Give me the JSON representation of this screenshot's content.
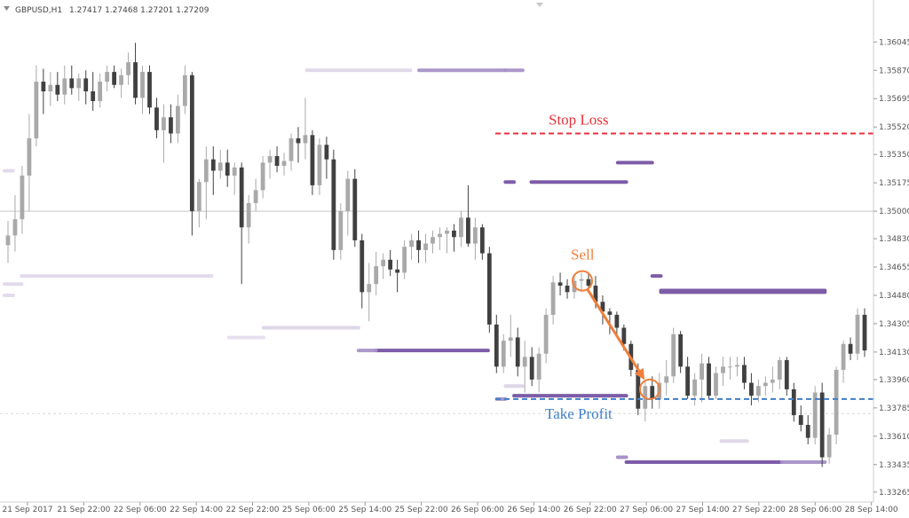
{
  "header": {
    "symbol": "GBPUSD,H1",
    "ohlc": "1.27417 1.27468 1.27201 1.27209"
  },
  "chart_data": {
    "type": "candlestick",
    "title": "",
    "xlabel": "",
    "ylabel": "",
    "ylim": [
      1.3322,
      1.3614
    ],
    "y_ticks": [
      "1.36045",
      "1.35870",
      "1.35695",
      "1.35520",
      "1.35350",
      "1.35175",
      "1.35000",
      "1.34830",
      "1.34655",
      "1.34480",
      "1.34305",
      "1.34130",
      "1.33960",
      "1.33785",
      "1.33610",
      "1.33435",
      "1.33265"
    ],
    "x_ticks": [
      "21 Sep 2017",
      "21 Sep 22:00",
      "22 Sep 06:00",
      "22 Sep 14:00",
      "22 Sep 22:00",
      "25 Sep 06:00",
      "25 Sep 14:00",
      "25 Sep 22:00",
      "26 Sep 06:00",
      "26 Sep 14:00",
      "26 Sep 22:00",
      "27 Sep 06:00",
      "27 Sep 14:00",
      "27 Sep 22:00",
      "28 Sep 06:00",
      "28 Sep 14:00"
    ],
    "grid": false,
    "reference_line": 1.35,
    "candles_ohlc": [
      [
        1.3479,
        1.3494,
        1.3468,
        1.3485
      ],
      [
        1.3485,
        1.351,
        1.3475,
        1.3495
      ],
      [
        1.3495,
        1.3528,
        1.3486,
        1.3522
      ],
      [
        1.3522,
        1.356,
        1.35,
        1.3545
      ],
      [
        1.3545,
        1.359,
        1.354,
        1.358
      ],
      [
        1.358,
        1.3588,
        1.356,
        1.3574
      ],
      [
        1.3574,
        1.3586,
        1.3565,
        1.3578
      ],
      [
        1.3578,
        1.3586,
        1.3568,
        1.3572
      ],
      [
        1.3572,
        1.359,
        1.3566,
        1.3582
      ],
      [
        1.3582,
        1.359,
        1.3572,
        1.3576
      ],
      [
        1.3576,
        1.3585,
        1.3568,
        1.3582
      ],
      [
        1.3582,
        1.3587,
        1.3566,
        1.3574
      ],
      [
        1.3574,
        1.3586,
        1.3562,
        1.3568
      ],
      [
        1.3568,
        1.3585,
        1.3564,
        1.358
      ],
      [
        1.358,
        1.359,
        1.3574,
        1.3586
      ],
      [
        1.3586,
        1.359,
        1.3576,
        1.3578
      ],
      [
        1.3578,
        1.3588,
        1.357,
        1.3584
      ],
      [
        1.3584,
        1.3598,
        1.3578,
        1.3592
      ],
      [
        1.3592,
        1.3604,
        1.3566,
        1.357
      ],
      [
        1.357,
        1.359,
        1.356,
        1.3586
      ],
      [
        1.3586,
        1.359,
        1.356,
        1.3564
      ],
      [
        1.3564,
        1.357,
        1.3545,
        1.355
      ],
      [
        1.355,
        1.3566,
        1.353,
        1.3558
      ],
      [
        1.3558,
        1.3566,
        1.3542,
        1.3548
      ],
      [
        1.3548,
        1.3572,
        1.3542,
        1.3565
      ],
      [
        1.3565,
        1.359,
        1.356,
        1.3584
      ],
      [
        1.3584,
        1.3586,
        1.3485,
        1.35
      ],
      [
        1.35,
        1.352,
        1.349,
        1.3518
      ],
      [
        1.3518,
        1.354,
        1.3495,
        1.3532
      ],
      [
        1.3532,
        1.354,
        1.351,
        1.3525
      ],
      [
        1.3525,
        1.3538,
        1.352,
        1.353
      ],
      [
        1.353,
        1.3538,
        1.3515,
        1.3522
      ],
      [
        1.3522,
        1.353,
        1.351,
        1.3527
      ],
      [
        1.3527,
        1.353,
        1.3455,
        1.349
      ],
      [
        1.349,
        1.351,
        1.348,
        1.3505
      ],
      [
        1.3505,
        1.352,
        1.35,
        1.3513
      ],
      [
        1.3513,
        1.3534,
        1.3508,
        1.353
      ],
      [
        1.353,
        1.3538,
        1.352,
        1.3534
      ],
      [
        1.3534,
        1.354,
        1.3524,
        1.3528
      ],
      [
        1.3528,
        1.3536,
        1.3522,
        1.3531
      ],
      [
        1.3531,
        1.3548,
        1.3525,
        1.3545
      ],
      [
        1.3545,
        1.3552,
        1.353,
        1.3542
      ],
      [
        1.3542,
        1.357,
        1.3532,
        1.3547
      ],
      [
        1.3547,
        1.355,
        1.351,
        1.3516
      ],
      [
        1.3516,
        1.3545,
        1.351,
        1.3541
      ],
      [
        1.3541,
        1.3546,
        1.352,
        1.3532
      ],
      [
        1.3532,
        1.3538,
        1.347,
        1.3476
      ],
      [
        1.3476,
        1.3505,
        1.347,
        1.35
      ],
      [
        1.35,
        1.3525,
        1.3485,
        1.352
      ],
      [
        1.352,
        1.3526,
        1.3478,
        1.3482
      ],
      [
        1.3482,
        1.3486,
        1.344,
        1.345
      ],
      [
        1.345,
        1.3468,
        1.3432,
        1.3455
      ],
      [
        1.3455,
        1.3475,
        1.3448,
        1.3466
      ],
      [
        1.3466,
        1.3474,
        1.3458,
        1.347
      ],
      [
        1.347,
        1.3476,
        1.346,
        1.3464
      ],
      [
        1.3464,
        1.347,
        1.345,
        1.3462
      ],
      [
        1.3462,
        1.3482,
        1.3458,
        1.3478
      ],
      [
        1.3478,
        1.3486,
        1.347,
        1.3482
      ],
      [
        1.3482,
        1.3488,
        1.3468,
        1.3476
      ],
      [
        1.3476,
        1.3486,
        1.3468,
        1.348
      ],
      [
        1.348,
        1.3488,
        1.3474,
        1.3484
      ],
      [
        1.3484,
        1.349,
        1.3476,
        1.3486
      ],
      [
        1.3486,
        1.349,
        1.3474,
        1.3488
      ],
      [
        1.3488,
        1.3492,
        1.3475,
        1.3484
      ],
      [
        1.3484,
        1.35,
        1.3478,
        1.3496
      ],
      [
        1.3496,
        1.3516,
        1.3478,
        1.348
      ],
      [
        1.348,
        1.3496,
        1.347,
        1.349
      ],
      [
        1.349,
        1.3492,
        1.347,
        1.3474
      ],
      [
        1.3474,
        1.3478,
        1.3425,
        1.343
      ],
      [
        1.343,
        1.3436,
        1.34,
        1.3404
      ],
      [
        1.3404,
        1.3424,
        1.34,
        1.342
      ],
      [
        1.342,
        1.3436,
        1.341,
        1.3422
      ],
      [
        1.3422,
        1.3428,
        1.3398,
        1.3404
      ],
      [
        1.3404,
        1.342,
        1.3388,
        1.341
      ],
      [
        1.341,
        1.3416,
        1.3392,
        1.3396
      ],
      [
        1.3396,
        1.3416,
        1.3388,
        1.3412
      ],
      [
        1.3412,
        1.344,
        1.3406,
        1.3436
      ],
      [
        1.3436,
        1.346,
        1.343,
        1.3456
      ],
      [
        1.3456,
        1.3462,
        1.3448,
        1.3454
      ],
      [
        1.3454,
        1.3458,
        1.3446,
        1.345
      ],
      [
        1.345,
        1.346,
        1.3446,
        1.3457
      ],
      [
        1.3457,
        1.3462,
        1.345,
        1.3458
      ],
      [
        1.3458,
        1.3462,
        1.3452,
        1.3454
      ],
      [
        1.3454,
        1.346,
        1.344,
        1.3444
      ],
      [
        1.3444,
        1.3448,
        1.343,
        1.3438
      ],
      [
        1.3438,
        1.344,
        1.3424,
        1.3436
      ],
      [
        1.3436,
        1.3438,
        1.3422,
        1.3428
      ],
      [
        1.3428,
        1.343,
        1.3414,
        1.3418
      ],
      [
        1.3418,
        1.342,
        1.3398,
        1.3402
      ],
      [
        1.3402,
        1.3406,
        1.3374,
        1.3378
      ],
      [
        1.3378,
        1.3396,
        1.337,
        1.3392
      ],
      [
        1.3392,
        1.3398,
        1.3378,
        1.3384
      ],
      [
        1.3384,
        1.34,
        1.3378,
        1.3394
      ],
      [
        1.3394,
        1.3408,
        1.3386,
        1.3398
      ],
      [
        1.3398,
        1.3428,
        1.3394,
        1.3424
      ],
      [
        1.3424,
        1.3426,
        1.34,
        1.3404
      ],
      [
        1.3404,
        1.341,
        1.3384,
        1.3386
      ],
      [
        1.3386,
        1.34,
        1.338,
        1.3396
      ],
      [
        1.3396,
        1.3412,
        1.3382,
        1.3406
      ],
      [
        1.3406,
        1.341,
        1.3384,
        1.3386
      ],
      [
        1.3386,
        1.3404,
        1.3384,
        1.34
      ],
      [
        1.34,
        1.341,
        1.3392,
        1.3404
      ],
      [
        1.3404,
        1.341,
        1.3396,
        1.3404
      ],
      [
        1.3404,
        1.341,
        1.3398,
        1.3405
      ],
      [
        1.3405,
        1.341,
        1.339,
        1.3394
      ],
      [
        1.3394,
        1.34,
        1.338,
        1.3386
      ],
      [
        1.3386,
        1.3396,
        1.3382,
        1.3392
      ],
      [
        1.3392,
        1.3398,
        1.3386,
        1.3394
      ],
      [
        1.3394,
        1.3404,
        1.3388,
        1.3396
      ],
      [
        1.3396,
        1.341,
        1.339,
        1.3408
      ],
      [
        1.3408,
        1.341,
        1.3386,
        1.339
      ],
      [
        1.339,
        1.3394,
        1.337,
        1.3374
      ],
      [
        1.3374,
        1.338,
        1.3364,
        1.3368
      ],
      [
        1.3368,
        1.3374,
        1.3356,
        1.336
      ],
      [
        1.336,
        1.3392,
        1.3356,
        1.3388
      ],
      [
        1.3388,
        1.3394,
        1.3342,
        1.3348
      ],
      [
        1.3348,
        1.3366,
        1.3344,
        1.3362
      ],
      [
        1.3362,
        1.3404,
        1.3356,
        1.3402
      ],
      [
        1.3402,
        1.342,
        1.3394,
        1.3418
      ],
      [
        1.3418,
        1.3422,
        1.3408,
        1.3412
      ],
      [
        1.3412,
        1.344,
        1.3408,
        1.3436
      ],
      [
        1.3436,
        1.344,
        1.341,
        1.3414
      ]
    ],
    "volume_profile": [
      {
        "price": 1.3587,
        "from": 0.35,
        "to": 0.47,
        "strength": 0.3
      },
      {
        "price": 1.3587,
        "from": 0.48,
        "to": 0.58,
        "strength": 0.45
      },
      {
        "price": 1.3587,
        "from": 0.58,
        "to": 0.6,
        "strength": 0.45
      },
      {
        "price": 1.3525,
        "from": 0.0,
        "to": 0.01,
        "strength": 0.25
      },
      {
        "price": 1.353,
        "from": 0.71,
        "to": 0.75,
        "strength": 0.75
      },
      {
        "price": 1.3518,
        "from": 0.58,
        "to": 0.59,
        "strength": 0.9
      },
      {
        "price": 1.3518,
        "from": 0.61,
        "to": 0.72,
        "strength": 0.95
      },
      {
        "price": 1.346,
        "from": 0.02,
        "to": 0.24,
        "strength": 0.25
      },
      {
        "price": 1.3455,
        "from": 0.0,
        "to": 0.02,
        "strength": 0.25
      },
      {
        "price": 1.345,
        "from": 0.76,
        "to": 0.95,
        "strength": 0.7
      },
      {
        "price": 1.3451,
        "from": 0.76,
        "to": 0.95,
        "strength": 0.7
      },
      {
        "price": 1.346,
        "from": 0.75,
        "to": 0.76,
        "strength": 0.95
      },
      {
        "price": 1.3448,
        "from": 0.0,
        "to": 0.01,
        "strength": 0.25
      },
      {
        "price": 1.3428,
        "from": 0.3,
        "to": 0.41,
        "strength": 0.35
      },
      {
        "price": 1.3422,
        "from": 0.26,
        "to": 0.3,
        "strength": 0.15
      },
      {
        "price": 1.3414,
        "from": 0.43,
        "to": 0.56,
        "strength": 0.75
      },
      {
        "price": 1.3414,
        "from": 0.41,
        "to": 0.43,
        "strength": 0.45
      },
      {
        "price": 1.3392,
        "from": 0.58,
        "to": 0.6,
        "strength": 0.35
      },
      {
        "price": 1.3386,
        "from": 0.59,
        "to": 0.7,
        "strength": 0.9
      },
      {
        "price": 1.3386,
        "from": 0.7,
        "to": 0.72,
        "strength": 0.75
      },
      {
        "price": 1.3384,
        "from": 0.57,
        "to": 0.58,
        "strength": 0.5
      },
      {
        "price": 1.3348,
        "from": 0.71,
        "to": 0.72,
        "strength": 0.55
      },
      {
        "price": 1.3345,
        "from": 0.72,
        "to": 0.9,
        "strength": 0.75
      },
      {
        "price": 1.3345,
        "from": 0.9,
        "to": 0.95,
        "strength": 0.45
      },
      {
        "price": 1.3358,
        "from": 0.83,
        "to": 0.86,
        "strength": 0.3
      }
    ],
    "annotations": {
      "stop_loss": {
        "label": "Stop Loss",
        "price": 1.3548,
        "color": "#e8323c"
      },
      "take_profit": {
        "label": "Take Profit",
        "price": 1.3384,
        "color": "#3f7fc8"
      },
      "sell": {
        "label": "Sell",
        "color": "#f07f3b",
        "entry_price": 1.3457,
        "exit_price": 1.339
      }
    }
  }
}
